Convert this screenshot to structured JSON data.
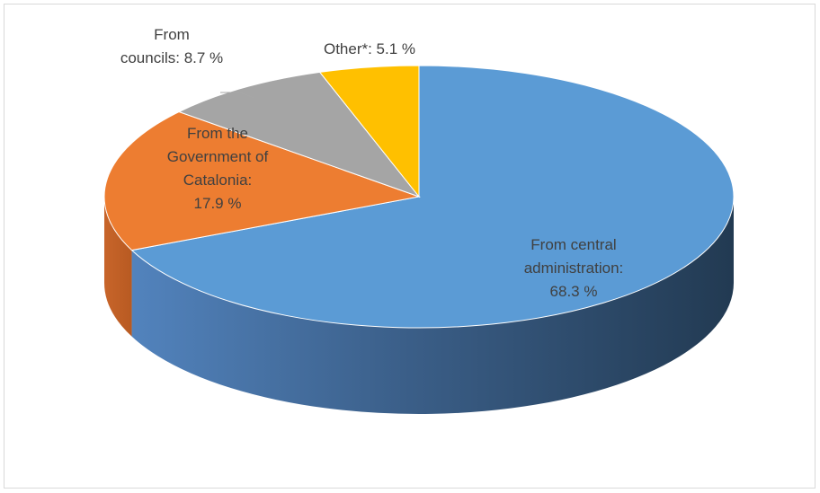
{
  "chart_data": {
    "type": "pie",
    "title": "",
    "slices": [
      {
        "label": "From central administration",
        "value": 68.3,
        "display_lines": [
          "From central",
          "administration:",
          "68.3 %"
        ],
        "color": "#5b9bd5"
      },
      {
        "label": "From the Government of Catalonia",
        "value": 17.9,
        "display_lines": [
          "From the",
          "Government of",
          "Catalonia:",
          "17.9 %"
        ],
        "color": "#ed7d31"
      },
      {
        "label": "From councils",
        "value": 8.7,
        "display_lines": [
          "From",
          "councils:  8.7 %"
        ],
        "color": "#a5a5a5"
      },
      {
        "label": "Other*",
        "value": 5.1,
        "display_lines": [
          "Other*:  5.1 %"
        ],
        "color": "#ffc000"
      }
    ],
    "legend": "none",
    "style": "3d-pie"
  }
}
